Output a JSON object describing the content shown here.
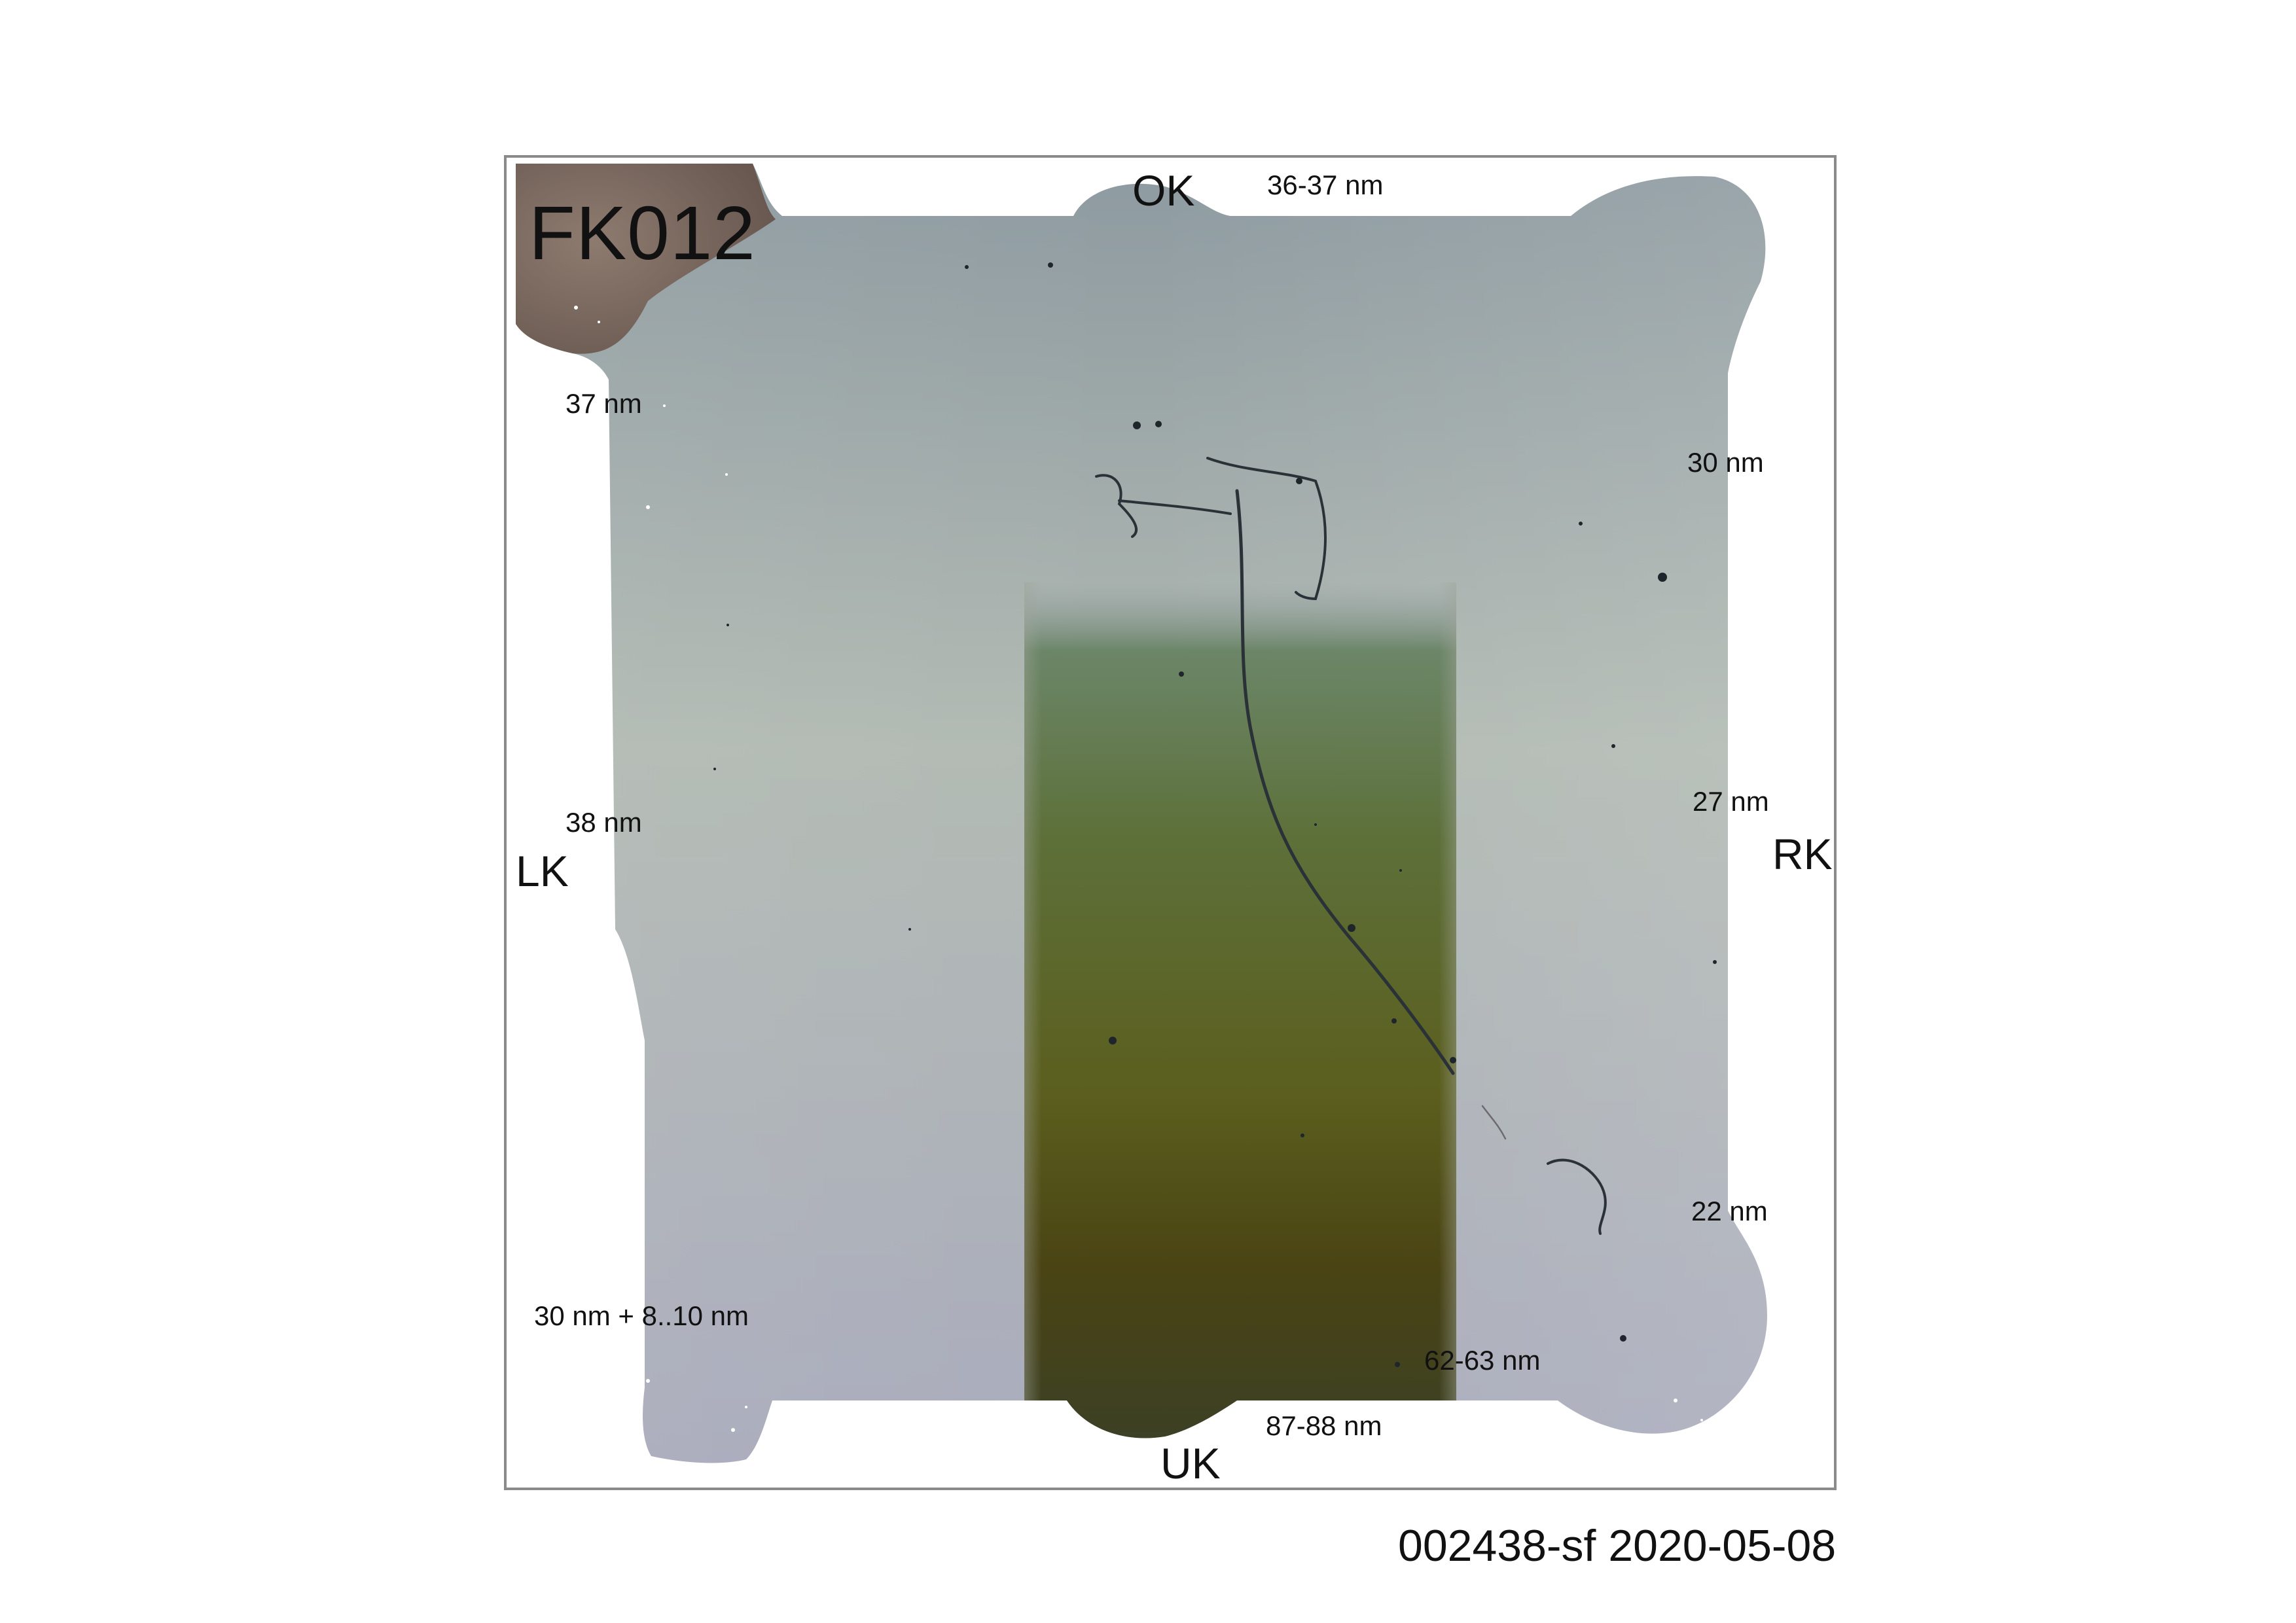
{
  "sample": {
    "id_label": "FK012",
    "footer": "002438-sf 2020-05-08"
  },
  "edges": {
    "top": "OK",
    "bottom": "UK",
    "left": "LK",
    "right": "RK"
  },
  "thickness_labels": {
    "top_right": "36-37 nm",
    "left_upper": "37 nm",
    "left_middle": "38 nm",
    "left_lower": "30 nm + 8..10 nm",
    "right_upper": "30 nm",
    "right_middle": "27 nm",
    "right_lower": "22 nm",
    "center_bottom": "62-63 nm",
    "bottom": "87-88 nm"
  },
  "colors": {
    "background": "#ffffff",
    "frame": "#8a8a8a",
    "film_top": "#8d9aa0",
    "film_middle": "#b1b8b2",
    "film_bottom": "#a9abbc",
    "band_top": "#5f7a5c",
    "band_middle": "#5f6a27",
    "band_bottom": "#3e3a16",
    "corner_dark": "#6e5a4f"
  }
}
